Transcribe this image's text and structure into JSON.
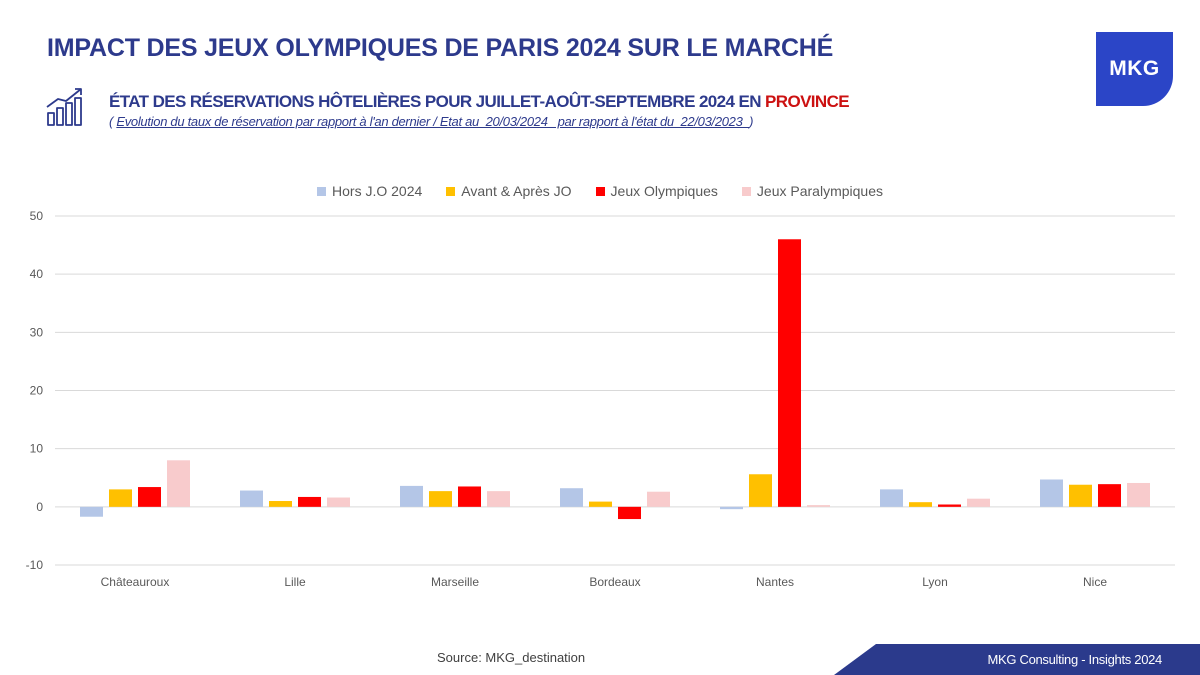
{
  "header": {
    "title": "IMPACT DES JEUX OLYMPIQUES DE PARIS 2024 SUR LE MARCHÉ",
    "logo_text": "MKG",
    "subtitle_main": "ÉTAT DES RÉSERVATIONS HÔTELIÈRES POUR JUILLET-AOÛT-SEPTEMBRE 2024 EN ",
    "subtitle_highlight": "PROVINCE",
    "subnote_open": "( ",
    "subnote_text": "Evolution du taux de réservation par rapport à l'an dernier / Etat au  20/03/2024   par rapport à l'état du  22/03/2023  ",
    "subnote_close": ")"
  },
  "colors": {
    "title": "#2d3a8c",
    "accent_red": "#cc1111",
    "logo_bg": "#2b45c7",
    "footer_bg": "#2b3a8c",
    "grid": "#d9d9d9"
  },
  "chart_data": {
    "type": "bar",
    "title": "",
    "xlabel": "",
    "ylabel": "",
    "ylim": [
      -10,
      50
    ],
    "yticks": [
      "50",
      "40",
      "30",
      "20",
      "10",
      "0",
      "-10"
    ],
    "ytick_values": [
      50,
      40,
      30,
      20,
      10,
      0,
      -10
    ],
    "grid": true,
    "legend_position": "top",
    "categories": [
      "Châteauroux",
      "Lille",
      "Marseille",
      "Bordeaux",
      "Nantes",
      "Lyon",
      "Nice"
    ],
    "series": [
      {
        "name": "Hors J.O 2024",
        "color": "#b4c6e7",
        "values": [
          -1.7,
          2.8,
          3.6,
          3.2,
          -0.4,
          3.0,
          4.7
        ]
      },
      {
        "name": "Avant & Après JO",
        "color": "#ffc000",
        "values": [
          3.0,
          1.0,
          2.7,
          0.9,
          5.6,
          0.8,
          3.8
        ]
      },
      {
        "name": "Jeux Olympiques",
        "color": "#ff0000",
        "values": [
          3.4,
          1.7,
          3.5,
          -2.1,
          46.0,
          0.4,
          3.9
        ]
      },
      {
        "name": "Jeux Paralympiques",
        "color": "#f8cbcc",
        "values": [
          8.0,
          1.6,
          2.7,
          2.6,
          0.3,
          1.4,
          4.1
        ]
      }
    ]
  },
  "footer": {
    "source": "Source: MKG_destination",
    "brand": "MKG Consulting -  Insights 2024"
  }
}
